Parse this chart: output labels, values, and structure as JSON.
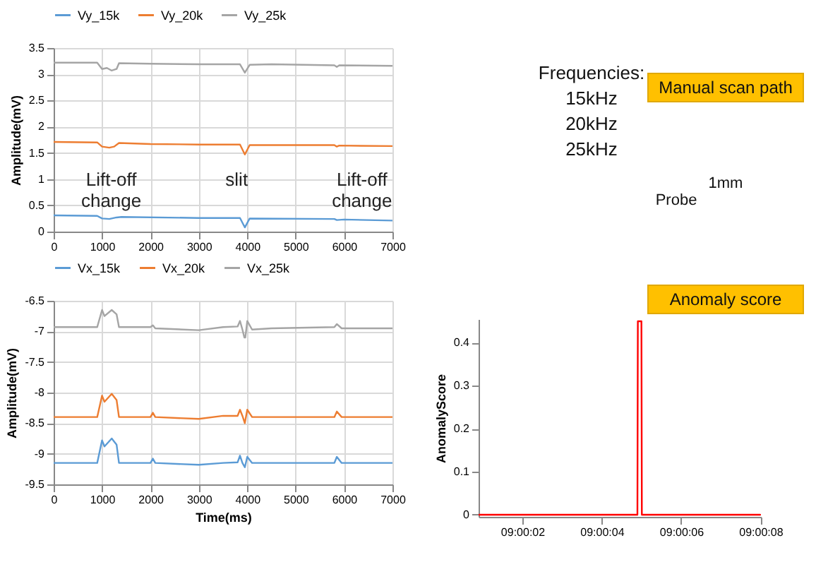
{
  "chart_data": [
    {
      "type": "line",
      "ylabel": "Amplitude(mV)",
      "xlim": [
        0,
        7000
      ],
      "xticks": [
        0,
        1000,
        2000,
        3000,
        4000,
        5000,
        6000,
        7000
      ],
      "ylim": [
        0,
        3.5
      ],
      "yticks": [
        0,
        0.5,
        1,
        1.5,
        2,
        2.5,
        3,
        3.5
      ],
      "grid": true,
      "legend": "top",
      "series": [
        {
          "name": "Vy_15k",
          "color": "#5b9bd5",
          "x": [
            0,
            900,
            1000,
            1150,
            1300,
            1400,
            3000,
            3850,
            3950,
            4050,
            5800,
            5850,
            6000,
            7000
          ],
          "values": [
            0.31,
            0.3,
            0.25,
            0.24,
            0.27,
            0.28,
            0.26,
            0.26,
            0.08,
            0.25,
            0.24,
            0.22,
            0.23,
            0.21
          ]
        },
        {
          "name": "Vy_20k",
          "color": "#ed7d31",
          "x": [
            0,
            900,
            1000,
            1150,
            1250,
            1350,
            2000,
            3000,
            3850,
            3950,
            4050,
            5800,
            5850,
            5900,
            7000
          ],
          "values": [
            1.71,
            1.7,
            1.62,
            1.6,
            1.62,
            1.69,
            1.67,
            1.66,
            1.66,
            1.47,
            1.65,
            1.65,
            1.62,
            1.64,
            1.63
          ]
        },
        {
          "name": "Vy_25k",
          "color": "#a5a5a5",
          "x": [
            0,
            900,
            1000,
            1100,
            1200,
            1300,
            1350,
            2000,
            3000,
            3850,
            3950,
            4050,
            4500,
            5800,
            5850,
            5900,
            7000
          ],
          "values": [
            3.22,
            3.22,
            3.1,
            3.12,
            3.07,
            3.1,
            3.21,
            3.2,
            3.19,
            3.19,
            3.03,
            3.18,
            3.19,
            3.17,
            3.14,
            3.17,
            3.16
          ]
        }
      ],
      "annotations": [
        "Lift-off change",
        "slit",
        "Lift-off change"
      ]
    },
    {
      "type": "line",
      "ylabel": "Amplitude(mV)",
      "xlabel": "Time(ms)",
      "xlim": [
        0,
        7000
      ],
      "xticks": [
        0,
        1000,
        2000,
        3000,
        4000,
        5000,
        6000,
        7000
      ],
      "ylim": [
        -9.5,
        -6.5
      ],
      "yticks": [
        -9.5,
        -9,
        -8.5,
        -8,
        -7.5,
        -7,
        -6.5
      ],
      "grid": true,
      "legend": "top",
      "series": [
        {
          "name": "Vx_15k",
          "color": "#5b9bd5",
          "x": [
            0,
            900,
            1000,
            1050,
            1200,
            1300,
            1350,
            2000,
            2050,
            2100,
            3000,
            3500,
            3800,
            3850,
            3900,
            3950,
            4000,
            4100,
            5800,
            5850,
            5950,
            7000
          ],
          "values": [
            -9.15,
            -9.15,
            -8.78,
            -8.88,
            -8.75,
            -8.85,
            -9.15,
            -9.15,
            -9.08,
            -9.15,
            -9.18,
            -9.15,
            -9.14,
            -9.03,
            -9.15,
            -9.22,
            -9.05,
            -9.15,
            -9.15,
            -9.05,
            -9.15,
            -9.15
          ]
        },
        {
          "name": "Vx_20k",
          "color": "#ed7d31",
          "x": [
            0,
            900,
            1000,
            1050,
            1200,
            1300,
            1350,
            2000,
            2050,
            2100,
            3000,
            3500,
            3800,
            3850,
            3900,
            3950,
            4000,
            4100,
            5800,
            5850,
            5950,
            7000
          ],
          "values": [
            -8.4,
            -8.4,
            -8.05,
            -8.15,
            -8.02,
            -8.12,
            -8.4,
            -8.4,
            -8.33,
            -8.4,
            -8.43,
            -8.38,
            -8.38,
            -8.28,
            -8.38,
            -8.5,
            -8.28,
            -8.4,
            -8.4,
            -8.31,
            -8.4,
            -8.4
          ]
        },
        {
          "name": "Vx_25k",
          "color": "#a5a5a5",
          "x": [
            0,
            900,
            1000,
            1050,
            1200,
            1300,
            1350,
            2000,
            2050,
            2100,
            3000,
            3500,
            3800,
            3850,
            3900,
            3940,
            3960,
            4000,
            4100,
            4500,
            5800,
            5850,
            5950,
            7000
          ],
          "values": [
            -6.93,
            -6.93,
            -6.65,
            -6.75,
            -6.65,
            -6.72,
            -6.93,
            -6.93,
            -6.9,
            -6.95,
            -6.98,
            -6.93,
            -6.92,
            -6.83,
            -6.97,
            -7.1,
            -7.1,
            -6.83,
            -6.97,
            -6.95,
            -6.93,
            -6.88,
            -6.95,
            -6.95
          ]
        }
      ]
    },
    {
      "type": "other",
      "annotations": [
        "Frequencies:",
        "15kHz",
        "20kHz",
        "25kHz",
        "Manual scan path",
        "Probe",
        "1mm",
        "Anomaly score"
      ]
    },
    {
      "type": "line",
      "ylabel": "AnomalyScore",
      "xlim": [
        9.00025,
        9.002225
      ],
      "xticks": [
        {
          "value": 9.000556,
          "label": "09:00:02"
        },
        {
          "value": 9.001111,
          "label": "09:00:04"
        },
        {
          "value": 9.001667,
          "label": "09:00:06"
        },
        {
          "value": 9.002222,
          "label": "09:00:08"
        }
      ],
      "ylim": [
        -0.005,
        0.455
      ],
      "yticks": [
        0,
        0.1,
        0.2,
        0.3,
        0.4
      ],
      "grid": false,
      "legend": false,
      "series": [
        {
          "color": "#ff0000",
          "x": [
            9.00025,
            9.001361,
            9.001364,
            9.001389,
            9.001392,
            9.00222
          ],
          "values": [
            0,
            0,
            0.45,
            0.45,
            0,
            0
          ]
        }
      ]
    }
  ]
}
